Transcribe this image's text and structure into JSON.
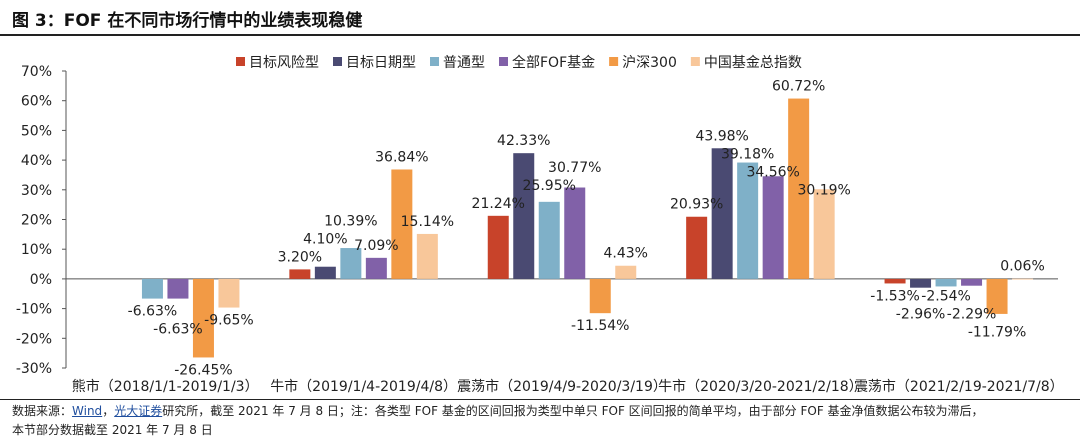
{
  "figure": {
    "title": "图 3：FOF 在不同市场行情中的业绩表现稳健",
    "source_prefix": "数据来源：",
    "source_link1": "Wind",
    "source_sep": "，",
    "source_link2": "光大证券",
    "source_rest": "研究所，截至 2021 年 7 月 8 日；注：各类型 FOF 基金的区间回报为类型中单只 FOF 区间回报的简单平均，由于部分 FOF 基金净值数据公布较为滞后，",
    "source_line2": "本节部分数据截至 2021 年 7 月 8 日"
  },
  "chart_data": {
    "type": "bar",
    "title": "",
    "xlabel": "",
    "ylabel": "",
    "ylim": [
      -30,
      70
    ],
    "yticks": [
      -30,
      -20,
      -10,
      0,
      10,
      20,
      30,
      40,
      50,
      60,
      70
    ],
    "ytick_labels": [
      "-30%",
      "-20%",
      "-10%",
      "0%",
      "10%",
      "20%",
      "30%",
      "40%",
      "50%",
      "60%",
      "70%"
    ],
    "grid": false,
    "legend_position": "top",
    "categories": [
      "熊市（2018/1/1-2019/1/3）",
      "牛市（2019/1/4-2019/4/8）",
      "震荡市（2019/4/9-2020/3/19）",
      "牛市（2020/3/20-2021/2/18）",
      "震荡市（2021/2/19-2021/7/8）"
    ],
    "series": [
      {
        "name": "目标风险型",
        "color": "#c8432a",
        "values": [
          null,
          3.2,
          21.24,
          20.93,
          -1.53
        ],
        "labels": [
          "",
          "3.20%",
          "21.24%",
          "20.93%",
          "-1.53%"
        ]
      },
      {
        "name": "目标日期型",
        "color": "#4a4a72",
        "values": [
          null,
          4.1,
          42.33,
          43.98,
          -2.96
        ],
        "labels": [
          "",
          "4.10%",
          "42.33%",
          "43.98%",
          "-2.96%"
        ]
      },
      {
        "name": "普通型",
        "color": "#7fb0c8",
        "values": [
          -6.63,
          10.39,
          25.95,
          39.18,
          -2.54
        ],
        "labels": [
          "-6.63%",
          "10.39%",
          "25.95%",
          "39.18%",
          "-2.54%"
        ]
      },
      {
        "name": "全部FOF基金",
        "color": "#8161a8",
        "values": [
          -6.63,
          7.09,
          30.77,
          34.56,
          -2.29
        ],
        "labels": [
          "-6.63%",
          "7.09%",
          "30.77%",
          "34.56%",
          "-2.29%"
        ]
      },
      {
        "name": "沪深300",
        "color": "#f29a45",
        "values": [
          -26.45,
          36.84,
          -11.54,
          60.72,
          -11.79
        ],
        "labels": [
          "-26.45%",
          "36.84%",
          "-11.54%",
          "60.72%",
          "-11.79%"
        ]
      },
      {
        "name": "中国基金总指数",
        "color": "#f8c79a",
        "values": [
          -9.65,
          15.14,
          4.43,
          30.19,
          0.06
        ],
        "labels": [
          "-9.65%",
          "15.14%",
          "4.43%",
          "30.19%",
          "0.06%"
        ]
      }
    ]
  }
}
